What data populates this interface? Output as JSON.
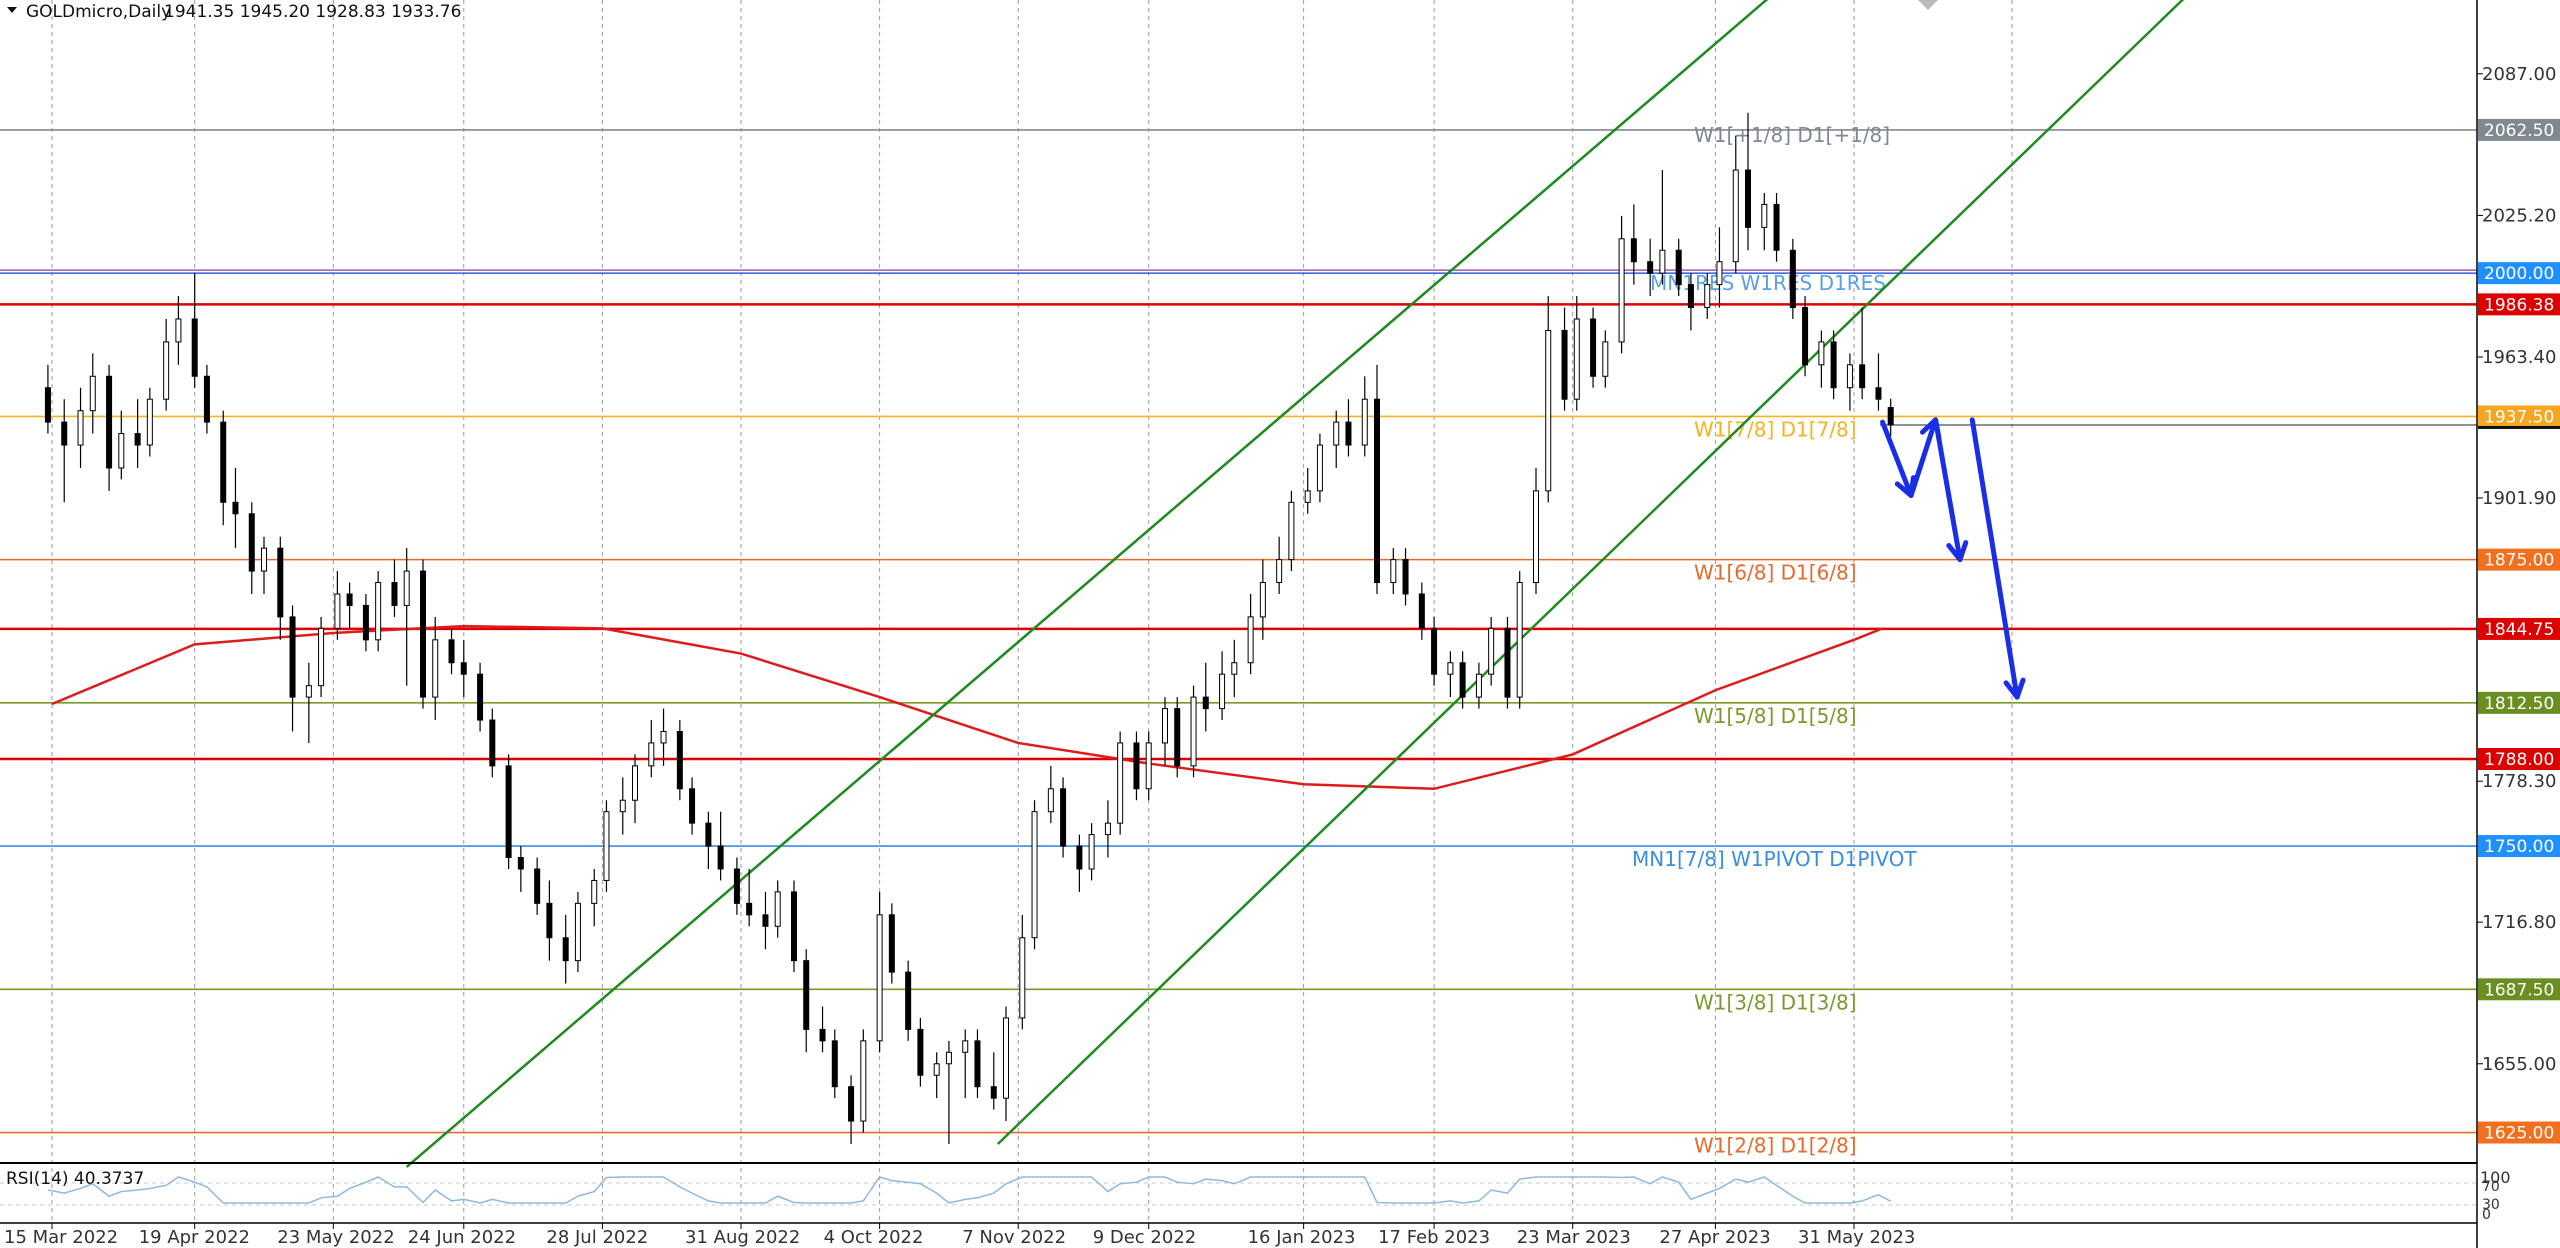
{
  "header": {
    "symbol": "GOLDmicro,Daily",
    "ohlc": "1941.35 1945.20 1928.83 1933.76",
    "menu_icon": "triangle-down-icon"
  },
  "rsi": {
    "label": "RSI(14) 40.3737",
    "scale": [
      "100",
      "70",
      "30",
      "0"
    ]
  },
  "chart_data": {
    "type": "candlestick",
    "title": "GOLDmicro,Daily",
    "ylim": [
      1611.7,
      2119.2
    ],
    "grid": true,
    "price_ticks": [
      "2087.00",
      "2025.20",
      "1963.40",
      "1901.90",
      "1778.30",
      "1716.80",
      "1655.00"
    ],
    "date_ticks": [
      "15 Mar 2022",
      "19 Apr 2022",
      "23 May 2022",
      "24 Jun 2022",
      "28 Jul 2022",
      "31 Aug 2022",
      "4 Oct 2022",
      "7 Nov 2022",
      "9 Dec 2022",
      "16 Jan 2023",
      "17 Feb 2023",
      "23 Mar 2023",
      "27 Apr 2023",
      "31 May 2023"
    ],
    "levels": [
      {
        "price": 2062.5,
        "tag": "2062.50",
        "label": "W1[+1/8] D1[+1/8]",
        "color": "#808890",
        "tag_color": "#808890"
      },
      {
        "price": 2000.0,
        "tag": "2000.00",
        "label": "MN1RES W1RES D1RES",
        "color": "#4169e1",
        "tag_color": "#1e90ff"
      },
      {
        "price": 1986.38,
        "tag": "1986.38",
        "label": "",
        "color": "#dd0000",
        "tag_color": "#dd0000"
      },
      {
        "price": 1937.5,
        "tag": "1937.50",
        "label": "W1[7/8] D1[7/8]",
        "color": "#f5b321",
        "tag_color": "#f5a623"
      },
      {
        "price": 1875.0,
        "tag": "1875.00",
        "label": "W1[6/8] D1[6/8]",
        "color": "#e8692a",
        "tag_color": "#f07020"
      },
      {
        "price": 1844.75,
        "tag": "1844.75",
        "label": "",
        "color": "#dd0000",
        "tag_color": "#dd0000"
      },
      {
        "price": 1812.5,
        "tag": "1812.50",
        "label": "W1[5/8] D1[5/8]",
        "color": "#7a9a2a",
        "tag_color": "#6b8e23"
      },
      {
        "price": 1788.0,
        "tag": "1788.00",
        "label": "",
        "color": "#dd0000",
        "tag_color": "#dd0000"
      },
      {
        "price": 1750.0,
        "tag": "1750.00",
        "label": "MN1[7/8] W1PIVOT D1PIVOT",
        "color": "#3a8ee0",
        "tag_color": "#1e90ff"
      },
      {
        "price": 1687.5,
        "tag": "1687.50",
        "label": "W1[3/8] D1[3/8]",
        "color": "#7a9a2a",
        "tag_color": "#6b8e23"
      },
      {
        "price": 1625.0,
        "tag": "1625.00",
        "label": "W1[2/8] D1[2/8]",
        "color": "#e8692a",
        "tag_color": "#f07020"
      }
    ],
    "channel_lines": [
      {
        "from": [
          "2022-06-10",
          1610
        ],
        "to": [
          "2023-05-10",
          2120
        ]
      },
      {
        "from": [
          "2022-11-02",
          1620
        ],
        "to": [
          "2023-08-20",
          2120
        ]
      }
    ],
    "moving_average": [
      [
        "2022-03-15",
        1812
      ],
      [
        "2022-04-19",
        1838
      ],
      [
        "2022-05-23",
        1843
      ],
      [
        "2022-06-24",
        1846
      ],
      [
        "2022-07-28",
        1845
      ],
      [
        "2022-08-31",
        1834
      ],
      [
        "2022-10-04",
        1815
      ],
      [
        "2022-11-07",
        1795
      ],
      [
        "2022-12-09",
        1786
      ],
      [
        "2023-01-16",
        1777
      ],
      [
        "2023-02-17",
        1775
      ],
      [
        "2023-03-23",
        1790
      ],
      [
        "2023-04-27",
        1818
      ],
      [
        "2023-05-31",
        1840
      ],
      [
        "2023-06-07",
        1845
      ]
    ],
    "forecast_arrows": [
      {
        "from": [
          "2023-06-07",
          1935
        ],
        "to": [
          "2023-06-14",
          1903
        ]
      },
      {
        "from": [
          "2023-06-14",
          1903
        ],
        "to": [
          "2023-06-20",
          1936
        ]
      },
      {
        "from": [
          "2023-06-20",
          1936
        ],
        "to": [
          "2023-06-26",
          1875
        ]
      },
      {
        "from": [
          "2023-06-29",
          1936
        ],
        "to": [
          "2023-07-10",
          1815
        ]
      }
    ],
    "candles": [
      [
        "2022-03-14",
        1950,
        1960,
        1930,
        1935
      ],
      [
        "2022-03-18",
        1935,
        1945,
        1900,
        1925
      ],
      [
        "2022-03-22",
        1925,
        1950,
        1915,
        1940
      ],
      [
        "2022-03-25",
        1940,
        1965,
        1930,
        1955
      ],
      [
        "2022-03-29",
        1955,
        1960,
        1905,
        1915
      ],
      [
        "2022-04-01",
        1915,
        1940,
        1910,
        1930
      ],
      [
        "2022-04-05",
        1930,
        1945,
        1915,
        1925
      ],
      [
        "2022-04-08",
        1925,
        1950,
        1920,
        1945
      ],
      [
        "2022-04-12",
        1945,
        1980,
        1940,
        1970
      ],
      [
        "2022-04-15",
        1970,
        1990,
        1960,
        1980
      ],
      [
        "2022-04-19",
        1980,
        2000,
        1950,
        1955
      ],
      [
        "2022-04-22",
        1955,
        1960,
        1930,
        1935
      ],
      [
        "2022-04-26",
        1935,
        1940,
        1890,
        1900
      ],
      [
        "2022-04-29",
        1900,
        1915,
        1880,
        1895
      ],
      [
        "2022-05-03",
        1895,
        1900,
        1860,
        1870
      ],
      [
        "2022-05-06",
        1870,
        1885,
        1860,
        1880
      ],
      [
        "2022-05-10",
        1880,
        1885,
        1840,
        1850
      ],
      [
        "2022-05-13",
        1850,
        1855,
        1800,
        1815
      ],
      [
        "2022-05-17",
        1815,
        1830,
        1795,
        1820
      ],
      [
        "2022-05-20",
        1820,
        1850,
        1815,
        1845
      ],
      [
        "2022-05-24",
        1845,
        1870,
        1840,
        1860
      ],
      [
        "2022-05-27",
        1860,
        1865,
        1845,
        1855
      ],
      [
        "2022-05-31",
        1855,
        1860,
        1835,
        1840
      ],
      [
        "2022-06-03",
        1840,
        1870,
        1835,
        1865
      ],
      [
        "2022-06-07",
        1865,
        1875,
        1850,
        1855
      ],
      [
        "2022-06-10",
        1855,
        1880,
        1820,
        1870
      ],
      [
        "2022-06-14",
        1870,
        1875,
        1810,
        1815
      ],
      [
        "2022-06-17",
        1815,
        1850,
        1805,
        1840
      ],
      [
        "2022-06-21",
        1840,
        1845,
        1825,
        1830
      ],
      [
        "2022-06-24",
        1830,
        1840,
        1815,
        1825
      ],
      [
        "2022-06-28",
        1825,
        1830,
        1800,
        1805
      ],
      [
        "2022-07-01",
        1805,
        1810,
        1780,
        1785
      ],
      [
        "2022-07-05",
        1785,
        1790,
        1740,
        1745
      ],
      [
        "2022-07-08",
        1745,
        1750,
        1730,
        1740
      ],
      [
        "2022-07-12",
        1740,
        1745,
        1720,
        1725
      ],
      [
        "2022-07-15",
        1725,
        1735,
        1700,
        1710
      ],
      [
        "2022-07-19",
        1710,
        1720,
        1690,
        1700
      ],
      [
        "2022-07-22",
        1700,
        1730,
        1695,
        1725
      ],
      [
        "2022-07-26",
        1725,
        1740,
        1715,
        1735
      ],
      [
        "2022-07-29",
        1735,
        1770,
        1730,
        1765
      ],
      [
        "2022-08-02",
        1765,
        1780,
        1755,
        1770
      ],
      [
        "2022-08-05",
        1770,
        1790,
        1760,
        1785
      ],
      [
        "2022-08-09",
        1785,
        1805,
        1780,
        1795
      ],
      [
        "2022-08-12",
        1795,
        1810,
        1785,
        1800
      ],
      [
        "2022-08-16",
        1800,
        1805,
        1770,
        1775
      ],
      [
        "2022-08-19",
        1775,
        1780,
        1755,
        1760
      ],
      [
        "2022-08-23",
        1760,
        1765,
        1740,
        1750
      ],
      [
        "2022-08-26",
        1750,
        1765,
        1735,
        1740
      ],
      [
        "2022-08-30",
        1740,
        1745,
        1720,
        1725
      ],
      [
        "2022-09-02",
        1725,
        1740,
        1715,
        1720
      ],
      [
        "2022-09-06",
        1720,
        1730,
        1705,
        1715
      ],
      [
        "2022-09-09",
        1715,
        1735,
        1710,
        1730
      ],
      [
        "2022-09-13",
        1730,
        1735,
        1695,
        1700
      ],
      [
        "2022-09-16",
        1700,
        1705,
        1660,
        1670
      ],
      [
        "2022-09-20",
        1670,
        1680,
        1660,
        1665
      ],
      [
        "2022-09-23",
        1665,
        1670,
        1640,
        1645
      ],
      [
        "2022-09-27",
        1645,
        1650,
        1620,
        1630
      ],
      [
        "2022-09-30",
        1630,
        1670,
        1625,
        1665
      ],
      [
        "2022-10-04",
        1665,
        1730,
        1660,
        1720
      ],
      [
        "2022-10-07",
        1720,
        1725,
        1690,
        1695
      ],
      [
        "2022-10-11",
        1695,
        1700,
        1665,
        1670
      ],
      [
        "2022-10-14",
        1670,
        1675,
        1645,
        1650
      ],
      [
        "2022-10-18",
        1650,
        1660,
        1640,
        1655
      ],
      [
        "2022-10-21",
        1655,
        1665,
        1620,
        1660
      ],
      [
        "2022-10-25",
        1660,
        1670,
        1640,
        1665
      ],
      [
        "2022-10-28",
        1665,
        1670,
        1640,
        1645
      ],
      [
        "2022-11-01",
        1645,
        1660,
        1635,
        1640
      ],
      [
        "2022-11-04",
        1640,
        1680,
        1630,
        1675
      ],
      [
        "2022-11-08",
        1675,
        1720,
        1670,
        1710
      ],
      [
        "2022-11-11",
        1710,
        1770,
        1705,
        1765
      ],
      [
        "2022-11-15",
        1765,
        1785,
        1760,
        1775
      ],
      [
        "2022-11-18",
        1775,
        1780,
        1745,
        1750
      ],
      [
        "2022-11-22",
        1750,
        1755,
        1730,
        1740
      ],
      [
        "2022-11-25",
        1740,
        1760,
        1735,
        1755
      ],
      [
        "2022-11-29",
        1755,
        1770,
        1745,
        1760
      ],
      [
        "2022-12-02",
        1760,
        1800,
        1755,
        1795
      ],
      [
        "2022-12-06",
        1795,
        1800,
        1770,
        1775
      ],
      [
        "2022-12-09",
        1775,
        1800,
        1770,
        1795
      ],
      [
        "2022-12-13",
        1795,
        1815,
        1785,
        1810
      ],
      [
        "2022-12-16",
        1810,
        1815,
        1780,
        1785
      ],
      [
        "2022-12-20",
        1785,
        1820,
        1780,
        1815
      ],
      [
        "2022-12-23",
        1815,
        1830,
        1800,
        1810
      ],
      [
        "2022-12-27",
        1810,
        1835,
        1805,
        1825
      ],
      [
        "2022-12-30",
        1825,
        1840,
        1815,
        1830
      ],
      [
        "2023-01-03",
        1830,
        1860,
        1825,
        1850
      ],
      [
        "2023-01-06",
        1850,
        1875,
        1840,
        1865
      ],
      [
        "2023-01-10",
        1865,
        1885,
        1860,
        1875
      ],
      [
        "2023-01-13",
        1875,
        1905,
        1870,
        1900
      ],
      [
        "2023-01-17",
        1900,
        1915,
        1895,
        1905
      ],
      [
        "2023-01-20",
        1905,
        1930,
        1900,
        1925
      ],
      [
        "2023-01-24",
        1925,
        1940,
        1915,
        1935
      ],
      [
        "2023-01-27",
        1935,
        1945,
        1920,
        1925
      ],
      [
        "2023-01-31",
        1925,
        1955,
        1920,
        1945
      ],
      [
        "2023-02-03",
        1945,
        1960,
        1860,
        1865
      ],
      [
        "2023-02-07",
        1865,
        1880,
        1860,
        1875
      ],
      [
        "2023-02-10",
        1875,
        1880,
        1855,
        1860
      ],
      [
        "2023-02-14",
        1860,
        1865,
        1840,
        1845
      ],
      [
        "2023-02-17",
        1845,
        1850,
        1820,
        1825
      ],
      [
        "2023-02-21",
        1825,
        1835,
        1815,
        1830
      ],
      [
        "2023-02-24",
        1830,
        1835,
        1810,
        1815
      ],
      [
        "2023-02-28",
        1815,
        1830,
        1810,
        1825
      ],
      [
        "2023-03-03",
        1825,
        1850,
        1820,
        1845
      ],
      [
        "2023-03-07",
        1845,
        1850,
        1810,
        1815
      ],
      [
        "2023-03-10",
        1815,
        1870,
        1810,
        1865
      ],
      [
        "2023-03-14",
        1865,
        1915,
        1860,
        1905
      ],
      [
        "2023-03-17",
        1905,
        1990,
        1900,
        1975
      ],
      [
        "2023-03-21",
        1975,
        1985,
        1940,
        1945
      ],
      [
        "2023-03-24",
        1945,
        1990,
        1940,
        1980
      ],
      [
        "2023-03-28",
        1980,
        1985,
        1950,
        1955
      ],
      [
        "2023-03-31",
        1955,
        1975,
        1950,
        1970
      ],
      [
        "2023-04-04",
        1970,
        2025,
        1965,
        2015
      ],
      [
        "2023-04-07",
        2015,
        2030,
        1995,
        2005
      ],
      [
        "2023-04-11",
        2005,
        2015,
        1990,
        2000
      ],
      [
        "2023-04-14",
        2000,
        2045,
        1995,
        2010
      ],
      [
        "2023-04-18",
        2010,
        2015,
        1990,
        1995
      ],
      [
        "2023-04-21",
        1995,
        2000,
        1975,
        1985
      ],
      [
        "2023-04-25",
        1985,
        2000,
        1980,
        1995
      ],
      [
        "2023-04-28",
        1995,
        2020,
        1985,
        2005
      ],
      [
        "2023-05-02",
        2005,
        2060,
        2000,
        2045
      ],
      [
        "2023-05-05",
        2045,
        2070,
        2010,
        2020
      ],
      [
        "2023-05-09",
        2020,
        2035,
        2010,
        2030
      ],
      [
        "2023-05-12",
        2030,
        2035,
        2005,
        2010
      ],
      [
        "2023-05-16",
        2010,
        2015,
        1980,
        1985
      ],
      [
        "2023-05-19",
        1985,
        1990,
        1955,
        1960
      ],
      [
        "2023-05-23",
        1960,
        1975,
        1950,
        1970
      ],
      [
        "2023-05-26",
        1970,
        1975,
        1945,
        1950
      ],
      [
        "2023-05-30",
        1950,
        1965,
        1940,
        1960
      ],
      [
        "2023-06-02",
        1960,
        1985,
        1945,
        1950
      ],
      [
        "2023-06-06",
        1950,
        1965,
        1940,
        1945
      ],
      [
        "2023-06-09",
        1941.35,
        1945.2,
        1928.83,
        1933.76
      ]
    ]
  }
}
